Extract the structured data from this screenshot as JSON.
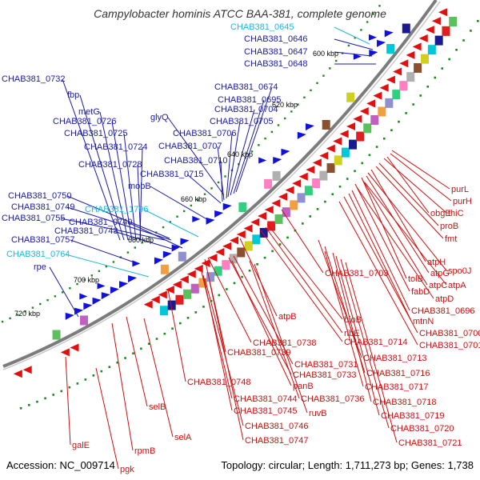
{
  "title": "Campylobacter hominis ATCC BAA-381, complete genome",
  "accession": "Accession: NC_009714",
  "topology": "Topology: circular; Length: 1,711,273 bp; Genes: 1,738",
  "colors": {
    "forward": "#1010e0",
    "reverse": "#e01010",
    "label_forward": "#1a1aa8",
    "label_reverse": "#cc1010",
    "label_rna": "#20b8d8",
    "backbone": "#8a8a8a"
  },
  "kbp_labels": [
    "600 kbp",
    "620 kbp",
    "640 kbp",
    "660 kbp",
    "680 kbp",
    "700 kbp",
    "720 kbp"
  ],
  "labels_left": [
    {
      "text": "CHAB381_0645",
      "type": "rna"
    },
    {
      "text": "CHAB381_0646",
      "type": "forward"
    },
    {
      "text": "CHAB381_0647",
      "type": "forward"
    },
    {
      "text": "CHAB381_0648",
      "type": "forward"
    },
    {
      "text": "CHAB381_0732",
      "type": "forward"
    },
    {
      "text": "fbp",
      "type": "forward"
    },
    {
      "text": "CHAB381_0674",
      "type": "forward"
    },
    {
      "text": "CHAB381_0695",
      "type": "forward"
    },
    {
      "text": "metG",
      "type": "forward"
    },
    {
      "text": "CHAB381_0704",
      "type": "forward"
    },
    {
      "text": "CHAB381_0726",
      "type": "forward"
    },
    {
      "text": "glyQ",
      "type": "forward"
    },
    {
      "text": "CHAB381_0705",
      "type": "forward"
    },
    {
      "text": "CHAB381_0725",
      "type": "forward"
    },
    {
      "text": "CHAB381_0706",
      "type": "forward"
    },
    {
      "text": "CHAB381_0724",
      "type": "forward"
    },
    {
      "text": "CHAB381_0707",
      "type": "forward"
    },
    {
      "text": "CHAB381_0710",
      "type": "forward"
    },
    {
      "text": "CHAB381_0728",
      "type": "forward"
    },
    {
      "text": "CHAB381_0715",
      "type": "forward"
    },
    {
      "text": "mobB",
      "type": "forward"
    },
    {
      "text": "CHAB381_0750",
      "type": "forward"
    },
    {
      "text": "CHAB381_0749",
      "type": "forward"
    },
    {
      "text": "CHAB381_1796",
      "type": "rna"
    },
    {
      "text": "CHAB381_0755",
      "type": "forward"
    },
    {
      "text": "CHAB381_0740",
      "type": "forward"
    },
    {
      "text": "CHAB381_0743",
      "type": "forward"
    },
    {
      "text": "CHAB381_0757",
      "type": "forward"
    },
    {
      "text": "CHAB381_0764",
      "type": "rna"
    },
    {
      "text": "rpe",
      "type": "forward"
    }
  ],
  "labels_right": [
    {
      "text": "purL"
    },
    {
      "text": "purH"
    },
    {
      "text": "obgE"
    },
    {
      "text": "thiC"
    },
    {
      "text": "proB"
    },
    {
      "text": "fmt"
    },
    {
      "text": "atpH"
    },
    {
      "text": "spo0J"
    },
    {
      "text": "atpG"
    },
    {
      "text": "tolB"
    },
    {
      "text": "atpC"
    },
    {
      "text": "atpA"
    },
    {
      "text": "CHAB381_0703"
    },
    {
      "text": "fabD"
    },
    {
      "text": "atpD"
    },
    {
      "text": "CHAB381_0696"
    },
    {
      "text": "mtnN"
    },
    {
      "text": "bioB"
    },
    {
      "text": "CHAB381_0700"
    },
    {
      "text": "atpB"
    },
    {
      "text": "ribE"
    },
    {
      "text": "CHAB381_0714"
    },
    {
      "text": "CHAB381_0701"
    },
    {
      "text": "CHAB381_0738"
    },
    {
      "text": "CHAB381_0739"
    },
    {
      "text": "CHAB381_0713"
    },
    {
      "text": "CHAB381_0731"
    },
    {
      "text": "CHAB381_0733"
    },
    {
      "text": "CHAB381_0716"
    },
    {
      "text": "panB"
    },
    {
      "text": "CHAB381_0748"
    },
    {
      "text": "CHAB381_0717"
    },
    {
      "text": "CHAB381_0744"
    },
    {
      "text": "CHAB381_0736"
    },
    {
      "text": "CHAB381_0718"
    },
    {
      "text": "selB"
    },
    {
      "text": "CHAB381_0745"
    },
    {
      "text": "ruvB"
    },
    {
      "text": "CHAB381_0719"
    },
    {
      "text": "CHAB381_0746"
    },
    {
      "text": "CHAB381_0720"
    },
    {
      "text": "selA"
    },
    {
      "text": "CHAB381_0747"
    },
    {
      "text": "CHAB381_0721"
    },
    {
      "text": "rpmB"
    },
    {
      "text": "galE"
    },
    {
      "text": "pgk"
    }
  ]
}
